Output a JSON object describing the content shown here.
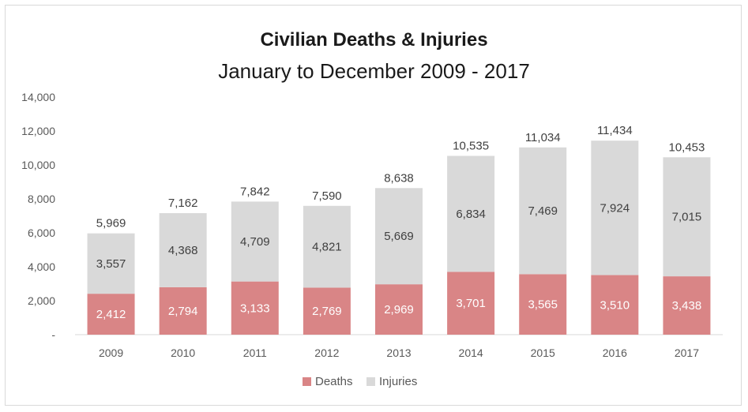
{
  "chart_data": {
    "type": "bar",
    "stacked": true,
    "title": "Civilian Deaths & Injuries",
    "subtitle": "January to December 2009 - 2017",
    "categories": [
      "2009",
      "2010",
      "2011",
      "2012",
      "2013",
      "2014",
      "2015",
      "2016",
      "2017"
    ],
    "series": [
      {
        "name": "Deaths",
        "color": "#d98586",
        "values": [
          2412,
          2794,
          3133,
          2769,
          2969,
          3701,
          3565,
          3510,
          3438
        ],
        "labels": [
          "2,412",
          "2,794",
          "3,133",
          "2,769",
          "2,969",
          "3,701",
          "3,565",
          "3,510",
          "3,438"
        ]
      },
      {
        "name": "Injuries",
        "color": "#d9d9d9",
        "values": [
          3557,
          4368,
          4709,
          4821,
          5669,
          6834,
          7469,
          7924,
          7015
        ],
        "labels": [
          "3,557",
          "4,368",
          "4,709",
          "4,821",
          "5,669",
          "6,834",
          "7,469",
          "7,924",
          "7,015"
        ]
      }
    ],
    "totals": [
      5969,
      7162,
      7842,
      7590,
      8638,
      10535,
      11034,
      11434,
      10453
    ],
    "total_labels": [
      "5,969",
      "7,162",
      "7,842",
      "7,590",
      "8,638",
      "10,535",
      "11,034",
      "11,434",
      "10,453"
    ],
    "ylim": [
      0,
      14000
    ],
    "yticks": [
      0,
      2000,
      4000,
      6000,
      8000,
      10000,
      12000,
      14000
    ],
    "ytick_labels": [
      "-",
      "2,000",
      "4,000",
      "6,000",
      "8,000",
      "10,000",
      "12,000",
      "14,000"
    ],
    "grid": false,
    "legend": "bottom"
  }
}
